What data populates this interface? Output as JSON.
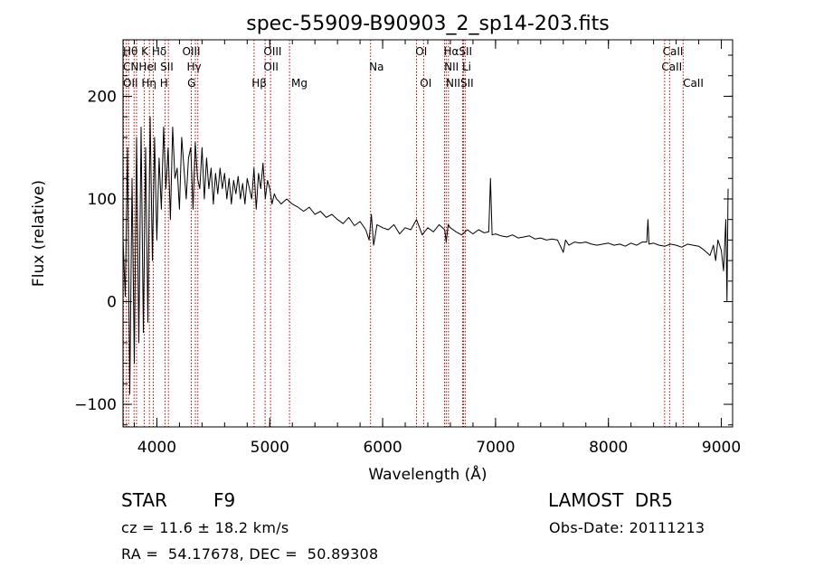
{
  "chart_data": {
    "type": "line",
    "title": "spec-55909-B90903_2_sp14-203.fits",
    "xlabel": "Wavelength (Å)",
    "ylabel": "Flux (relative)",
    "xlim": [
      3700,
      9100
    ],
    "ylim": [
      -122,
      255
    ],
    "x_ticks": [
      4000,
      5000,
      6000,
      7000,
      8000,
      9000
    ],
    "y_ticks": [
      -100,
      0,
      100,
      200
    ],
    "grid": false,
    "series": [
      {
        "color": "#000000",
        "x": [
          3700,
          3720,
          3740,
          3760,
          3780,
          3800,
          3820,
          3840,
          3860,
          3880,
          3900,
          3920,
          3940,
          3960,
          3980,
          4000,
          4020,
          4040,
          4060,
          4080,
          4100,
          4120,
          4140,
          4160,
          4180,
          4200,
          4220,
          4240,
          4260,
          4280,
          4300,
          4320,
          4340,
          4360,
          4380,
          4400,
          4420,
          4440,
          4460,
          4480,
          4500,
          4520,
          4540,
          4560,
          4580,
          4600,
          4620,
          4640,
          4660,
          4680,
          4700,
          4720,
          4740,
          4760,
          4780,
          4800,
          4820,
          4840,
          4860,
          4880,
          4900,
          4920,
          4940,
          4960,
          4980,
          5000,
          5020,
          5040,
          5060,
          5080,
          5100,
          5150,
          5200,
          5250,
          5300,
          5350,
          5400,
          5450,
          5500,
          5550,
          5600,
          5650,
          5700,
          5750,
          5800,
          5850,
          5880,
          5900,
          5920,
          5950,
          6000,
          6050,
          6100,
          6150,
          6200,
          6250,
          6300,
          6350,
          6400,
          6450,
          6500,
          6550,
          6563,
          6580,
          6600,
          6650,
          6700,
          6750,
          6800,
          6850,
          6900,
          6940,
          6955,
          6970,
          7000,
          7050,
          7100,
          7150,
          7200,
          7250,
          7300,
          7350,
          7400,
          7450,
          7500,
          7550,
          7600,
          7620,
          7650,
          7700,
          7750,
          7800,
          7850,
          7900,
          7950,
          8000,
          8050,
          8100,
          8150,
          8200,
          8250,
          8300,
          8340,
          8350,
          8360,
          8400,
          8450,
          8500,
          8550,
          8600,
          8650,
          8700,
          8750,
          8800,
          8850,
          8900,
          8930,
          8950,
          8970,
          9000,
          9020,
          9040,
          9050,
          9060
        ],
        "y": [
          60,
          5,
          150,
          -90,
          120,
          -60,
          160,
          -40,
          170,
          -30,
          150,
          -20,
          180,
          40,
          160,
          60,
          140,
          90,
          170,
          110,
          150,
          80,
          170,
          120,
          130,
          90,
          160,
          130,
          100,
          140,
          150,
          90,
          155,
          120,
          110,
          150,
          100,
          140,
          110,
          130,
          95,
          125,
          105,
          130,
          110,
          125,
          100,
          120,
          95,
          118,
          105,
          122,
          100,
          115,
          95,
          120,
          110,
          100,
          130,
          90,
          125,
          110,
          135,
          100,
          118,
          110,
          95,
          105,
          100,
          98,
          95,
          100,
          95,
          92,
          88,
          92,
          85,
          88,
          82,
          85,
          80,
          76,
          82,
          74,
          78,
          70,
          60,
          85,
          55,
          75,
          72,
          70,
          75,
          66,
          72,
          70,
          80,
          65,
          72,
          68,
          75,
          70,
          58,
          75,
          72,
          68,
          65,
          70,
          66,
          70,
          67,
          68,
          120,
          65,
          66,
          64,
          63,
          65,
          62,
          63,
          64,
          61,
          62,
          60,
          61,
          60,
          48,
          60,
          55,
          58,
          57,
          58,
          56,
          55,
          56,
          57,
          55,
          56,
          54,
          57,
          55,
          58,
          58,
          80,
          56,
          57,
          55,
          54,
          56,
          55,
          53,
          56,
          55,
          54,
          50,
          45,
          55,
          40,
          60,
          50,
          30,
          80,
          0,
          110
        ]
      }
    ],
    "line_markers": [
      {
        "x": 3705,
        "label": "Hθ"
      },
      {
        "x": 3730,
        "label": "OII"
      },
      {
        "x": 3750,
        "label": "CN"
      },
      {
        "x": 3798,
        "label": "Hη"
      },
      {
        "x": 3820,
        "label": "HeI"
      },
      {
        "x": 3889,
        "label": "Hζ"
      },
      {
        "x": 3934,
        "label": "K"
      },
      {
        "x": 3968,
        "label": "H"
      },
      {
        "x": 4072,
        "label": "SII"
      },
      {
        "x": 4102,
        "label": "Hδ"
      },
      {
        "x": 4305,
        "label": "G"
      },
      {
        "x": 4341,
        "label": "Hγ"
      },
      {
        "x": 4363,
        "label": "OIII"
      },
      {
        "x": 4861,
        "label": "Hβ"
      },
      {
        "x": 4959,
        "label": "OIII"
      },
      {
        "x": 5007,
        "label": "OIII"
      },
      {
        "x": 5175,
        "label": "Mg"
      },
      {
        "x": 5893,
        "label": "Na"
      },
      {
        "x": 6300,
        "label": "OI"
      },
      {
        "x": 6363,
        "label": "OI"
      },
      {
        "x": 6548,
        "label": "NII"
      },
      {
        "x": 6563,
        "label": "Hα"
      },
      {
        "x": 6583,
        "label": "NII"
      },
      {
        "x": 6708,
        "label": "Li"
      },
      {
        "x": 6716,
        "label": "SII"
      },
      {
        "x": 6731,
        "label": "SII"
      },
      {
        "x": 8498,
        "label": "CaII"
      },
      {
        "x": 8542,
        "label": "CaII"
      },
      {
        "x": 8662,
        "label": "CaII"
      }
    ],
    "marker_label_texts": [
      "Hθ K Hδ",
      "CNHeI SII",
      "OII Hη H",
      "OIII",
      "Hγ",
      "G",
      "OIII",
      "OII",
      "Hβ",
      "Mg",
      "Na",
      "OI",
      "OI",
      "HαSII",
      "NII Li",
      "NIISII",
      "CaII",
      "CaII",
      "CaII"
    ],
    "marker_color": "#b20000",
    "line_color": "#000000"
  },
  "footer": {
    "object_class": "STAR",
    "subclass": "F9",
    "survey": "LAMOST  DR5",
    "velocity": "cz = 11.6 ± 18.2 km/s",
    "obs_date": "Obs-Date: 20111213",
    "coords": "RA =  54.17678, DEC =  50.89308"
  }
}
